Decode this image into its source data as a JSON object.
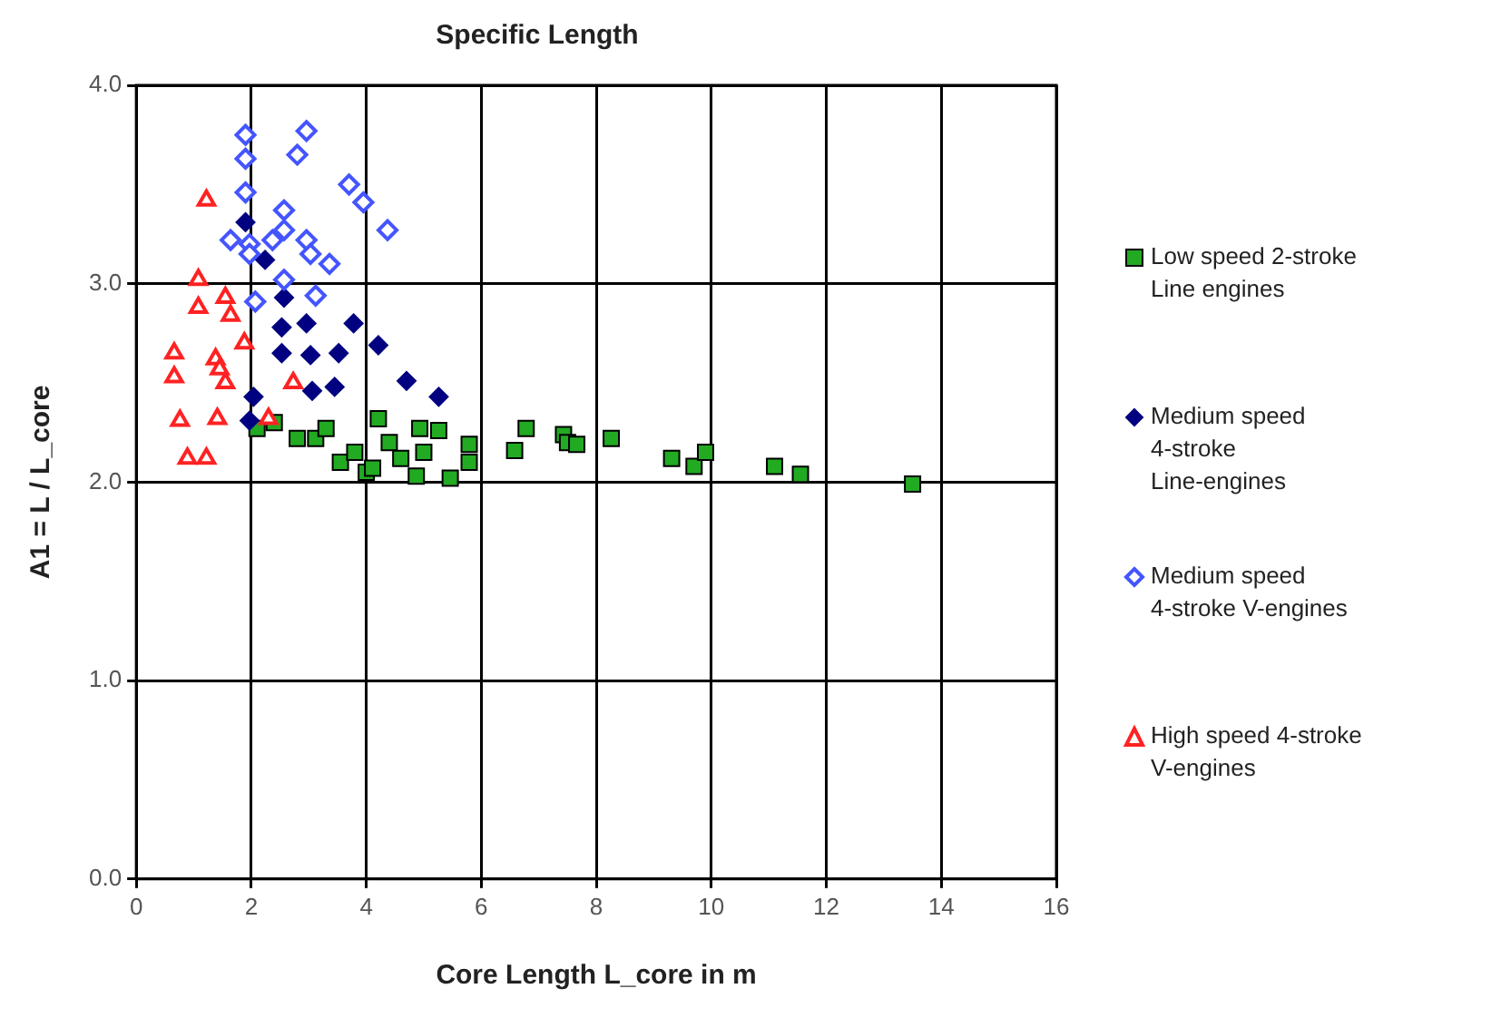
{
  "chart_data": {
    "type": "scatter",
    "title": "Specific Length",
    "xlabel": "Core Length L_core in m",
    "ylabel": "A1 = L / L_core",
    "xlim": [
      0,
      16
    ],
    "xticks": [
      0,
      2,
      4,
      6,
      8,
      10,
      12,
      14,
      16
    ],
    "ylim": [
      0,
      4
    ],
    "yticks": [
      {
        "value": 0,
        "label": "0.0"
      },
      {
        "value": 1,
        "label": "1.0"
      },
      {
        "value": 2,
        "label": "2.0"
      },
      {
        "value": 3,
        "label": "3.0"
      },
      {
        "value": 4,
        "label": "4.0"
      }
    ],
    "grid": true,
    "legend": "right",
    "series": [
      {
        "name": "Low speed 2-stroke Line engines",
        "color": "#22aa22",
        "marker": "square",
        "x": [
          2.1,
          2.4,
          2.8,
          3.12,
          3.3,
          3.55,
          3.8,
          4.0,
          4.11,
          4.21,
          4.4,
          4.6,
          4.87,
          4.93,
          5.0,
          5.26,
          5.46,
          5.79,
          5.79,
          6.58,
          6.78,
          7.43,
          7.5,
          7.66,
          8.26,
          9.31,
          9.7,
          9.9,
          11.1,
          11.55,
          13.5
        ],
        "values": [
          2.27,
          2.3,
          2.22,
          2.22,
          2.27,
          2.1,
          2.15,
          2.05,
          2.07,
          2.32,
          2.2,
          2.12,
          2.03,
          2.27,
          2.15,
          2.26,
          2.02,
          2.19,
          2.1,
          2.16,
          2.27,
          2.24,
          2.2,
          2.19,
          2.22,
          2.12,
          2.08,
          2.15,
          2.08,
          2.04,
          1.99
        ]
      },
      {
        "name": "Medium speed 4-stroke Line-engines",
        "color": "#000080",
        "marker": "diamond",
        "x": [
          1.9,
          2.24,
          2.57,
          2.53,
          2.96,
          3.78,
          4.21,
          4.7,
          5.26,
          2.53,
          3.03,
          3.52,
          3.45,
          3.06,
          2.04,
          1.97
        ],
        "values": [
          3.31,
          3.12,
          2.93,
          2.78,
          2.8,
          2.8,
          2.69,
          2.51,
          2.43,
          2.65,
          2.64,
          2.65,
          2.48,
          2.46,
          2.43,
          2.31
        ]
      },
      {
        "name": "Medium speed 4-stroke V-engines",
        "color": "#4455ff",
        "marker": "diamond",
        "x": [
          1.9,
          1.9,
          1.9,
          2.96,
          2.8,
          3.7,
          3.95,
          4.37,
          2.57,
          2.57,
          1.64,
          1.97,
          2.37,
          2.96,
          3.03,
          3.36,
          2.57,
          3.12,
          2.07,
          1.97
        ],
        "values": [
          3.75,
          3.63,
          3.46,
          3.77,
          3.65,
          3.5,
          3.41,
          3.27,
          3.37,
          3.27,
          3.22,
          3.2,
          3.22,
          3.22,
          3.15,
          3.1,
          3.02,
          2.94,
          2.91,
          3.15
        ]
      },
      {
        "name": "High speed 4-stroke V-engines",
        "color": "#ff2222",
        "marker": "triangle",
        "x": [
          1.22,
          1.08,
          1.08,
          1.55,
          1.64,
          1.88,
          0.66,
          0.66,
          1.38,
          1.55,
          1.45,
          2.73,
          2.3,
          1.41,
          0.76,
          0.89,
          1.22
        ],
        "values": [
          3.42,
          3.02,
          2.88,
          2.93,
          2.84,
          2.7,
          2.65,
          2.53,
          2.62,
          2.5,
          2.57,
          2.5,
          2.32,
          2.32,
          2.31,
          2.12,
          2.12
        ]
      }
    ]
  }
}
